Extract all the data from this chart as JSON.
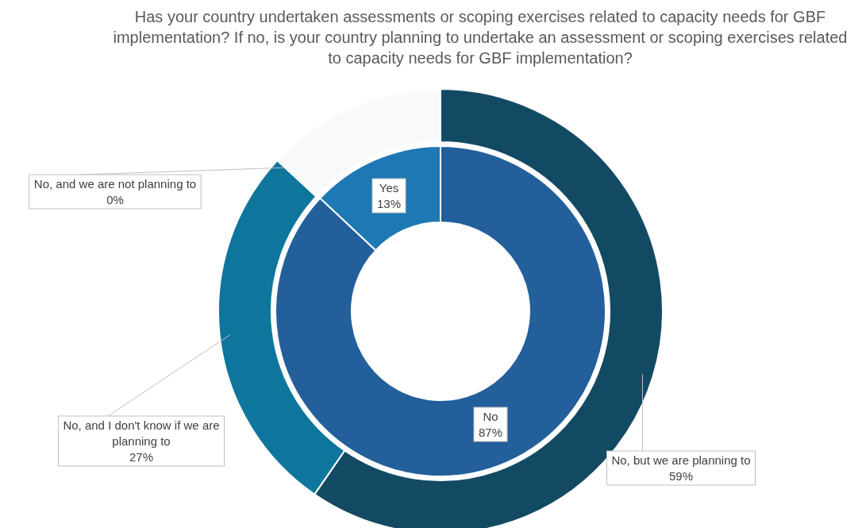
{
  "chart_data": [
    {
      "type": "donut",
      "title": "Has your country undertaken assessments or scoping exercises related to capacity needs for GBF implementation? If no, is your country planning to undertake an assessment or scoping exercises related to capacity needs for GBF implementation?",
      "categories": [
        "No, but we are planning to",
        "No, and I don't know if we are planning to",
        "No, and we are not planning to",
        null
      ],
      "values": [
        59,
        27,
        0,
        13
      ],
      "value_labels": [
        "59%",
        "27%",
        "0%",
        null
      ],
      "colors": [
        "#134a63",
        "#0e769c",
        null,
        "#f8f9fa"
      ]
    },
    {
      "type": "donut",
      "categories": [
        "No",
        "Yes"
      ],
      "values": [
        87,
        13
      ],
      "value_labels": [
        "87%",
        "13%"
      ],
      "colors": [
        "#235f9a",
        "#1e78b4"
      ]
    }
  ]
}
